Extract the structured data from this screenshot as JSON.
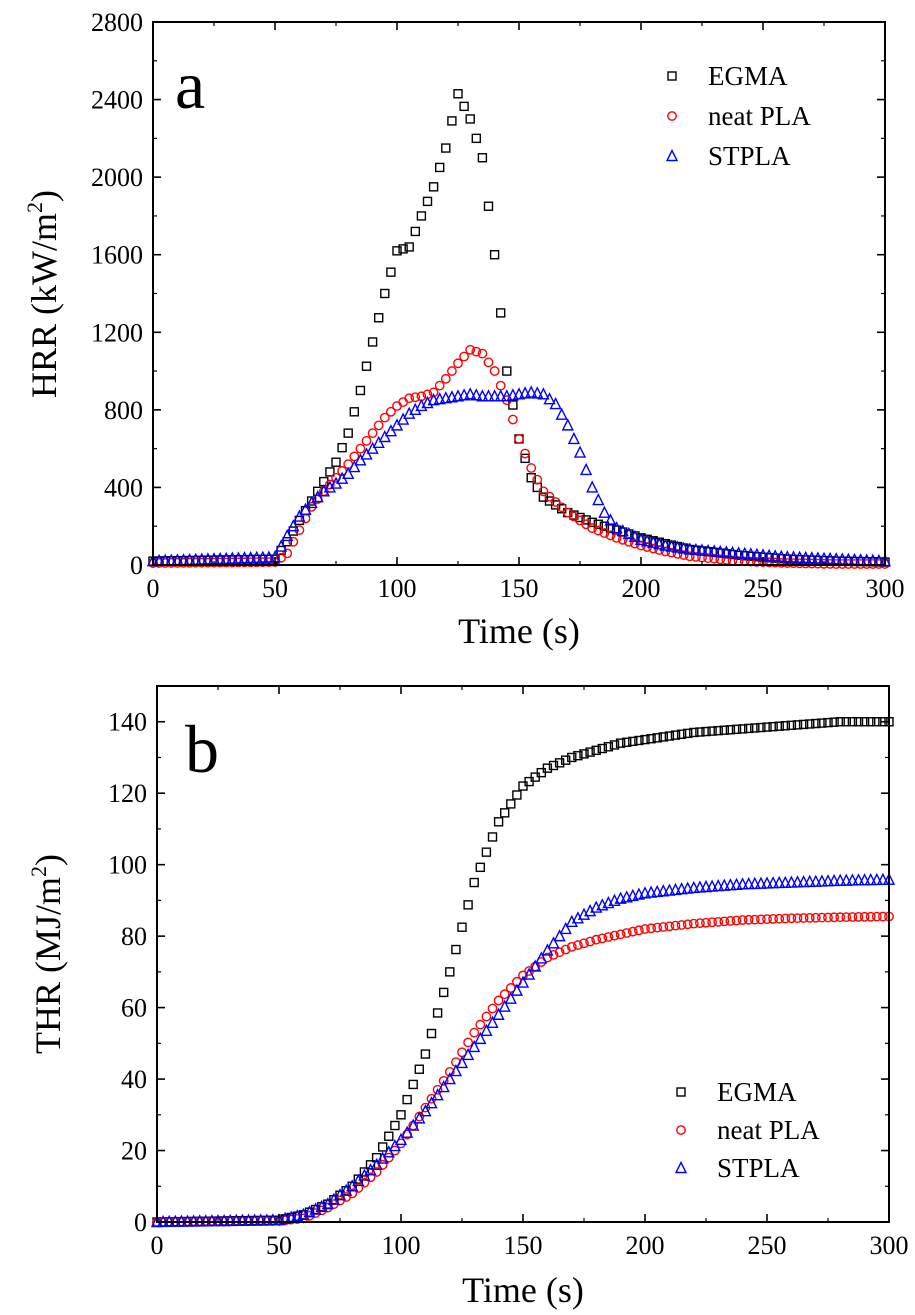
{
  "chart_data": [
    {
      "type": "scatter",
      "panel_label": "a",
      "xlabel": "Time (s)",
      "ylabel_main": "HRR (kW/m",
      "ylabel_sup": "2",
      "ylabel_close": ")",
      "xlim": [
        0,
        300
      ],
      "ylim": [
        0,
        2800
      ],
      "xticks": [
        0,
        50,
        100,
        150,
        200,
        250,
        300
      ],
      "yticks": [
        0,
        400,
        800,
        1200,
        1600,
        2000,
        2400,
        2800
      ],
      "grid": false,
      "legend_position": "top-right",
      "series": [
        {
          "name": "EGMA",
          "marker": "square",
          "color": "#000000",
          "x": [
            0,
            50,
            55,
            60,
            65,
            70,
            75,
            80,
            85,
            90,
            95,
            100,
            105,
            110,
            115,
            120,
            125,
            130,
            135,
            140,
            145,
            150,
            155,
            160,
            170,
            180,
            190,
            200,
            210,
            220,
            240,
            260,
            280,
            300
          ],
          "y": [
            20,
            30,
            120,
            230,
            330,
            430,
            530,
            680,
            900,
            1150,
            1400,
            1620,
            1640,
            1800,
            1950,
            2150,
            2430,
            2300,
            2100,
            1600,
            1000,
            650,
            450,
            350,
            270,
            220,
            180,
            140,
            110,
            80,
            50,
            30,
            20,
            15
          ]
        },
        {
          "name": "neat PLA",
          "marker": "circle",
          "color": "#ff0000",
          "x": [
            0,
            50,
            55,
            60,
            65,
            70,
            75,
            80,
            85,
            90,
            95,
            100,
            105,
            110,
            115,
            120,
            125,
            130,
            135,
            140,
            145,
            150,
            155,
            160,
            170,
            180,
            190,
            200,
            210,
            220,
            240,
            260,
            280,
            300
          ],
          "y": [
            10,
            15,
            60,
            180,
            300,
            380,
            450,
            520,
            600,
            680,
            760,
            820,
            860,
            870,
            890,
            960,
            1040,
            1110,
            1090,
            1000,
            850,
            650,
            500,
            380,
            270,
            190,
            140,
            100,
            70,
            45,
            20,
            10,
            5,
            5
          ]
        },
        {
          "name": "STPLA",
          "marker": "triangle",
          "color": "#0000ff",
          "x": [
            0,
            50,
            55,
            60,
            65,
            70,
            75,
            80,
            85,
            90,
            95,
            100,
            105,
            110,
            115,
            120,
            125,
            130,
            135,
            140,
            145,
            150,
            155,
            160,
            165,
            170,
            175,
            180,
            185,
            190,
            200,
            210,
            220,
            240,
            260,
            280,
            300
          ],
          "y": [
            20,
            40,
            150,
            250,
            320,
            380,
            420,
            470,
            540,
            600,
            660,
            720,
            780,
            820,
            850,
            860,
            870,
            880,
            870,
            870,
            870,
            880,
            890,
            880,
            830,
            720,
            580,
            400,
            270,
            190,
            130,
            100,
            80,
            60,
            40,
            30,
            20
          ]
        }
      ]
    },
    {
      "type": "scatter",
      "panel_label": "b",
      "xlabel": "Time (s)",
      "ylabel_main": "THR (MJ/m",
      "ylabel_sup": "2",
      "ylabel_close": ")",
      "xlim": [
        0,
        300
      ],
      "ylim": [
        0,
        150
      ],
      "xticks": [
        0,
        50,
        100,
        150,
        200,
        250,
        300
      ],
      "yticks": [
        0,
        20,
        40,
        60,
        80,
        100,
        120,
        140
      ],
      "grid": false,
      "legend_position": "bottom-right",
      "series": [
        {
          "name": "EGMA",
          "marker": "square",
          "color": "#000000",
          "x": [
            0,
            50,
            60,
            70,
            80,
            90,
            100,
            110,
            120,
            130,
            140,
            150,
            160,
            170,
            180,
            190,
            200,
            220,
            240,
            260,
            280,
            300
          ],
          "y": [
            0,
            0.5,
            2,
            5,
            10,
            18,
            30,
            47,
            70,
            95,
            112,
            122,
            127,
            130,
            132,
            134,
            135,
            137,
            138,
            139,
            140,
            140
          ]
        },
        {
          "name": "neat PLA",
          "marker": "circle",
          "color": "#ff0000",
          "x": [
            0,
            50,
            60,
            70,
            80,
            90,
            100,
            110,
            120,
            130,
            140,
            150,
            160,
            170,
            180,
            190,
            200,
            220,
            240,
            260,
            280,
            300
          ],
          "y": [
            0,
            0.3,
            1,
            4,
            8,
            14,
            22,
            32,
            42,
            53,
            62,
            69,
            74,
            77,
            79,
            80.5,
            82,
            83.5,
            84.5,
            85,
            85.3,
            85.5
          ]
        },
        {
          "name": "STPLA",
          "marker": "triangle",
          "color": "#0000ff",
          "x": [
            0,
            50,
            60,
            70,
            80,
            90,
            100,
            110,
            120,
            130,
            140,
            150,
            160,
            170,
            180,
            190,
            200,
            220,
            240,
            260,
            280,
            300
          ],
          "y": [
            0,
            0.5,
            2,
            5,
            10,
            16,
            23,
            31,
            40,
            49,
            58,
            67,
            76,
            84,
            88,
            90.5,
            92,
            93.5,
            94.5,
            95,
            95.5,
            95.8
          ]
        }
      ]
    }
  ]
}
